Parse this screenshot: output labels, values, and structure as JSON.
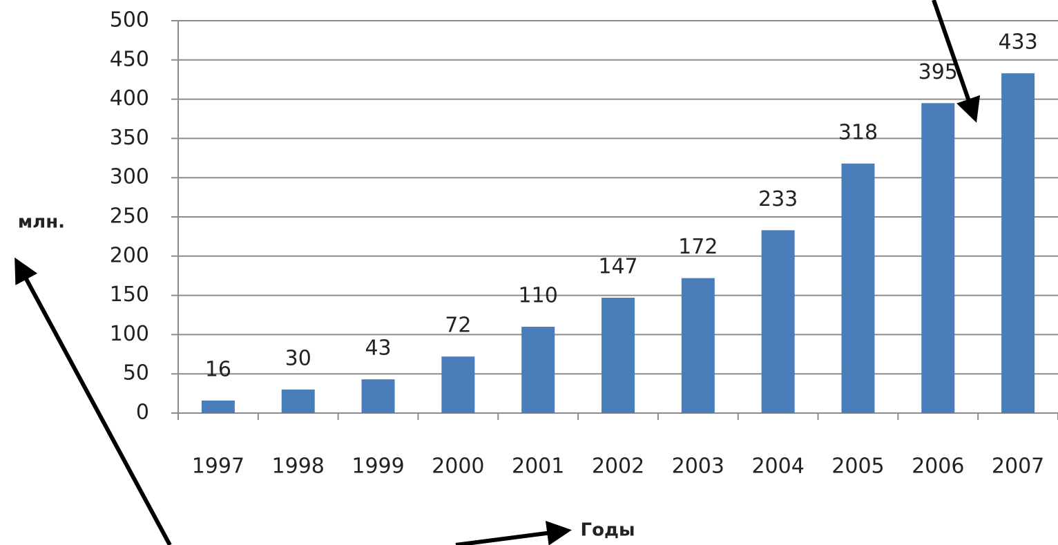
{
  "chart_data": {
    "type": "bar",
    "x_label": "Годы",
    "y_label": "млн.",
    "categories": [
      "1997",
      "1998",
      "1999",
      "2000",
      "2001",
      "2002",
      "2003",
      "2004",
      "2005",
      "2006",
      "2007"
    ],
    "values": [
      16,
      30,
      43,
      72,
      110,
      147,
      172,
      233,
      318,
      395,
      433
    ],
    "color": "#4a7ebb",
    "ylim": [
      0,
      500
    ],
    "yticks": [
      0,
      50,
      100,
      150,
      200,
      250,
      300,
      350,
      400,
      450,
      500
    ],
    "grid": true
  }
}
